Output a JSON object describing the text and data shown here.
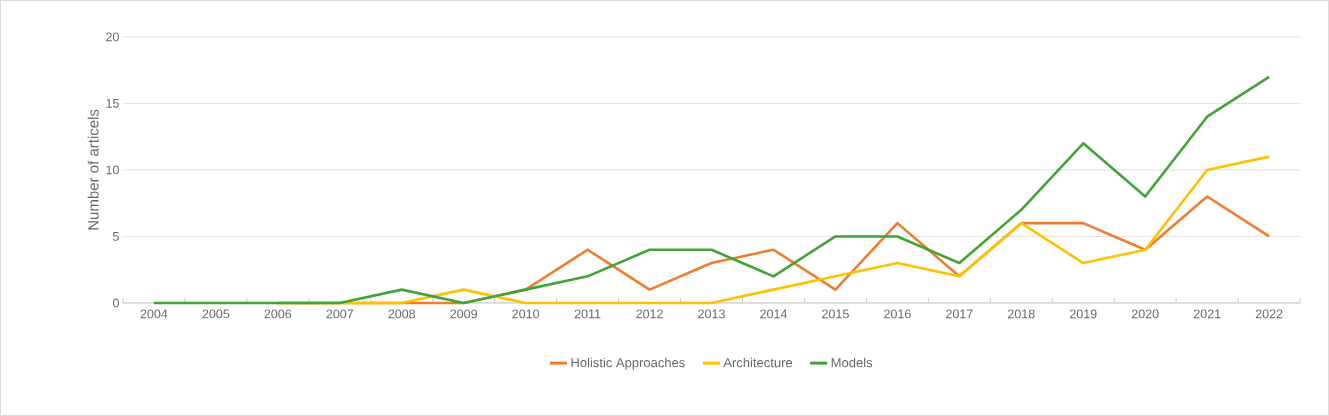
{
  "chart_data": {
    "type": "line",
    "ylabel": "Number of articels",
    "categories": [
      "2004",
      "2005",
      "2006",
      "2007",
      "2008",
      "2009",
      "2010",
      "2011",
      "2012",
      "2013",
      "2014",
      "2015",
      "2016",
      "2017",
      "2018",
      "2019",
      "2020",
      "2021",
      "2022"
    ],
    "series": [
      {
        "name": "Holistic Approaches",
        "color": "#ed7d31",
        "values": [
          null,
          null,
          0,
          0,
          0,
          0,
          1,
          4,
          1,
          3,
          4,
          1,
          6,
          2,
          6,
          6,
          4,
          8,
          5
        ]
      },
      {
        "name": "Architecture",
        "color": "#ffc000",
        "values": [
          null,
          null,
          0,
          0,
          0,
          1,
          0,
          0,
          0,
          0,
          1,
          2,
          3,
          2,
          6,
          3,
          4,
          10,
          11
        ]
      },
      {
        "name": "Models",
        "color": "#3fa535",
        "values": [
          0,
          0,
          0,
          0,
          1,
          0,
          1,
          2,
          4,
          4,
          2,
          5,
          5,
          3,
          7,
          12,
          8,
          14,
          17
        ]
      }
    ],
    "ylim": [
      0,
      20
    ],
    "yticks": [
      0,
      5,
      10,
      15,
      20
    ],
    "grid": "y",
    "legend": "bottom"
  }
}
